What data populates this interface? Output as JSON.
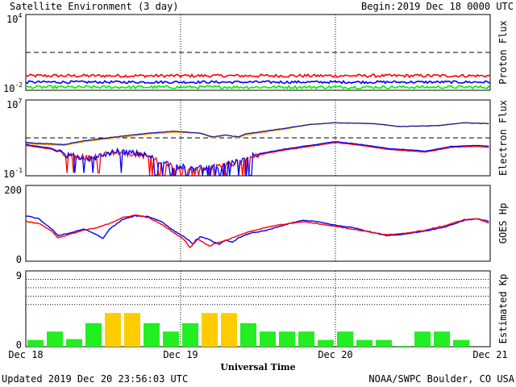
{
  "header": {
    "title": "Satellite Environment (3 day)",
    "begin_label": "Begin:",
    "begin_value": "2019 Dec 18 0000 UTC"
  },
  "footer": {
    "updated": "Updated 2019 Dec 20 23:56:03 UTC",
    "credit": "NOAA/SWPC Boulder, CO USA"
  },
  "x_axis": {
    "label": "Universal Time",
    "ticks": [
      "Dec 18",
      "Dec 19",
      "Dec 20",
      "Dec 21"
    ],
    "range_hours": [
      0,
      72
    ]
  },
  "colors": {
    "red": "#ff0000",
    "blue": "#0000ff",
    "green": "#00ee00",
    "orange": "#ffa500",
    "navy": "#1a1a9a",
    "kp_green": "#22ee22",
    "kp_yellow": "#ffcc00"
  },
  "chart_data": [
    {
      "id": "proton",
      "type": "line",
      "ylabel": "Proton Flux",
      "ytick_top_base": "10",
      "ytick_top_exp": "4",
      "ytick_bottom_base": "10",
      "ytick_bottom_exp": "-2",
      "yscale": "log",
      "ylim_log10": [
        -2,
        4
      ],
      "threshold_log10": 1,
      "series": [
        {
          "color": "red",
          "base": -0.85,
          "jitter": 0.12
        },
        {
          "color": "blue",
          "base": -1.35,
          "jitter": 0.1
        },
        {
          "color": "green",
          "base": -1.75,
          "jitter": 0.12
        }
      ]
    },
    {
      "id": "electron",
      "type": "line",
      "ylabel": "Electron Flux",
      "ytick_top_base": "10",
      "ytick_top_exp": "7",
      "ytick_bottom_base": "10",
      "ytick_bottom_exp": "-1",
      "yscale": "log",
      "ylim_log10": [
        -1,
        7
      ],
      "threshold_log10": 3,
      "series": [
        {
          "color": "orange",
          "points": [
            [
              0,
              2.4
            ],
            [
              6,
              2.2
            ],
            [
              9,
              2.6
            ],
            [
              14,
              3.0
            ],
            [
              19,
              3.4
            ],
            [
              23,
              3.6
            ],
            [
              27,
              3.5
            ],
            [
              29,
              3.0
            ],
            [
              31,
              3.3
            ],
            [
              33,
              3.0
            ],
            [
              34,
              3.3
            ],
            [
              36,
              3.5
            ],
            [
              40,
              3.9
            ],
            [
              44,
              4.4
            ],
            [
              48,
              4.6
            ],
            [
              54,
              4.5
            ],
            [
              58,
              4.2
            ],
            [
              64,
              4.3
            ],
            [
              68,
              4.6
            ],
            [
              72,
              4.5
            ]
          ]
        },
        {
          "color": "navy",
          "points": [
            [
              0,
              2.5
            ],
            [
              6,
              2.3
            ],
            [
              9,
              2.7
            ],
            [
              14,
              3.1
            ],
            [
              19,
              3.5
            ],
            [
              23,
              3.7
            ],
            [
              27,
              3.5
            ],
            [
              29,
              3.1
            ],
            [
              31,
              3.3
            ],
            [
              33,
              3.1
            ],
            [
              34,
              3.4
            ],
            [
              36,
              3.6
            ],
            [
              40,
              4.0
            ],
            [
              44,
              4.4
            ],
            [
              48,
              4.6
            ],
            [
              54,
              4.5
            ],
            [
              58,
              4.2
            ],
            [
              64,
              4.3
            ],
            [
              68,
              4.6
            ],
            [
              72,
              4.5
            ]
          ]
        },
        {
          "color": "red",
          "points": [
            [
              0,
              2.2
            ],
            [
              4,
              1.8
            ],
            [
              6,
              1.2
            ],
            [
              8,
              1.0
            ],
            [
              10,
              0.9
            ],
            [
              12,
              1.2
            ],
            [
              14,
              1.5
            ],
            [
              18,
              1.2
            ],
            [
              22,
              0.2
            ],
            [
              26,
              -0.4
            ],
            [
              30,
              0.0
            ],
            [
              33,
              0.4
            ],
            [
              36,
              1.2
            ],
            [
              40,
              1.7
            ],
            [
              44,
              2.1
            ],
            [
              48,
              2.5
            ],
            [
              52,
              2.2
            ],
            [
              56,
              1.8
            ],
            [
              62,
              1.5
            ],
            [
              66,
              2.0
            ],
            [
              70,
              2.1
            ],
            [
              72,
              2.0
            ]
          ]
        },
        {
          "color": "blue",
          "points": [
            [
              0,
              2.3
            ],
            [
              4,
              1.9
            ],
            [
              6,
              1.2
            ],
            [
              8,
              1.0
            ],
            [
              10,
              0.8
            ],
            [
              12,
              1.2
            ],
            [
              14,
              1.6
            ],
            [
              18,
              1.3
            ],
            [
              22,
              0.3
            ],
            [
              26,
              -0.3
            ],
            [
              30,
              0.1
            ],
            [
              33,
              0.5
            ],
            [
              36,
              1.3
            ],
            [
              40,
              1.8
            ],
            [
              44,
              2.2
            ],
            [
              48,
              2.6
            ],
            [
              52,
              2.3
            ],
            [
              56,
              1.9
            ],
            [
              62,
              1.6
            ],
            [
              66,
              2.1
            ],
            [
              70,
              2.2
            ],
            [
              72,
              2.1
            ]
          ]
        }
      ]
    },
    {
      "id": "goes_hp",
      "type": "line",
      "ylabel": "GOES Hp",
      "ytick_top": "200",
      "ytick_bottom": "0",
      "ylim": [
        0,
        200
      ],
      "series": [
        {
          "color": "blue",
          "points": [
            [
              0,
              120
            ],
            [
              2,
              112
            ],
            [
              4,
              85
            ],
            [
              5,
              68
            ],
            [
              7,
              75
            ],
            [
              9,
              85
            ],
            [
              11,
              70
            ],
            [
              12,
              60
            ],
            [
              13,
              85
            ],
            [
              15,
              110
            ],
            [
              17,
              120
            ],
            [
              19,
              118
            ],
            [
              21,
              105
            ],
            [
              23,
              80
            ],
            [
              24.5,
              65
            ],
            [
              26,
              45
            ],
            [
              27,
              65
            ],
            [
              28,
              60
            ],
            [
              29,
              52
            ],
            [
              30,
              45
            ],
            [
              31,
              55
            ],
            [
              32,
              50
            ],
            [
              33,
              62
            ],
            [
              35,
              75
            ],
            [
              37,
              80
            ],
            [
              39,
              90
            ],
            [
              41,
              100
            ],
            [
              43,
              108
            ],
            [
              45,
              105
            ],
            [
              48,
              95
            ],
            [
              51,
              88
            ],
            [
              54,
              75
            ],
            [
              56,
              68
            ],
            [
              58,
              70
            ],
            [
              62,
              80
            ],
            [
              65,
              90
            ],
            [
              68,
              108
            ],
            [
              70,
              112
            ],
            [
              72,
              105
            ]
          ]
        },
        {
          "color": "red",
          "points": [
            [
              0,
              105
            ],
            [
              2,
              100
            ],
            [
              4,
              80
            ],
            [
              5,
              62
            ],
            [
              7,
              72
            ],
            [
              9,
              82
            ],
            [
              11,
              88
            ],
            [
              13,
              100
            ],
            [
              15,
              115
            ],
            [
              17,
              122
            ],
            [
              19,
              115
            ],
            [
              21,
              98
            ],
            [
              23,
              75
            ],
            [
              24.5,
              58
            ],
            [
              25.5,
              35
            ],
            [
              26.5,
              60
            ],
            [
              27.5,
              50
            ],
            [
              28.5,
              40
            ],
            [
              29.5,
              48
            ],
            [
              31,
              55
            ],
            [
              33,
              68
            ],
            [
              35,
              80
            ],
            [
              37,
              88
            ],
            [
              39,
              95
            ],
            [
              41,
              100
            ],
            [
              43,
              104
            ],
            [
              45,
              100
            ],
            [
              48,
              92
            ],
            [
              51,
              84
            ],
            [
              54,
              75
            ],
            [
              56,
              70
            ],
            [
              58,
              72
            ],
            [
              62,
              82
            ],
            [
              65,
              94
            ],
            [
              68,
              110
            ],
            [
              70,
              112
            ],
            [
              72,
              100
            ]
          ]
        }
      ]
    },
    {
      "id": "kp",
      "type": "bar",
      "ylabel": "Estimated Kp",
      "ytick_top": "9",
      "ytick_bottom": "0",
      "ylim": [
        0,
        9
      ],
      "values": [
        0.8,
        1.8,
        0.9,
        2.8,
        4.0,
        4.0,
        2.8,
        1.8,
        2.8,
        4.0,
        4.0,
        2.8,
        1.8,
        1.8,
        1.8,
        0.8,
        1.8,
        0.8,
        0.8,
        0.1,
        1.8,
        1.8,
        0.8,
        0.0
      ],
      "yellow_threshold": 4
    }
  ]
}
